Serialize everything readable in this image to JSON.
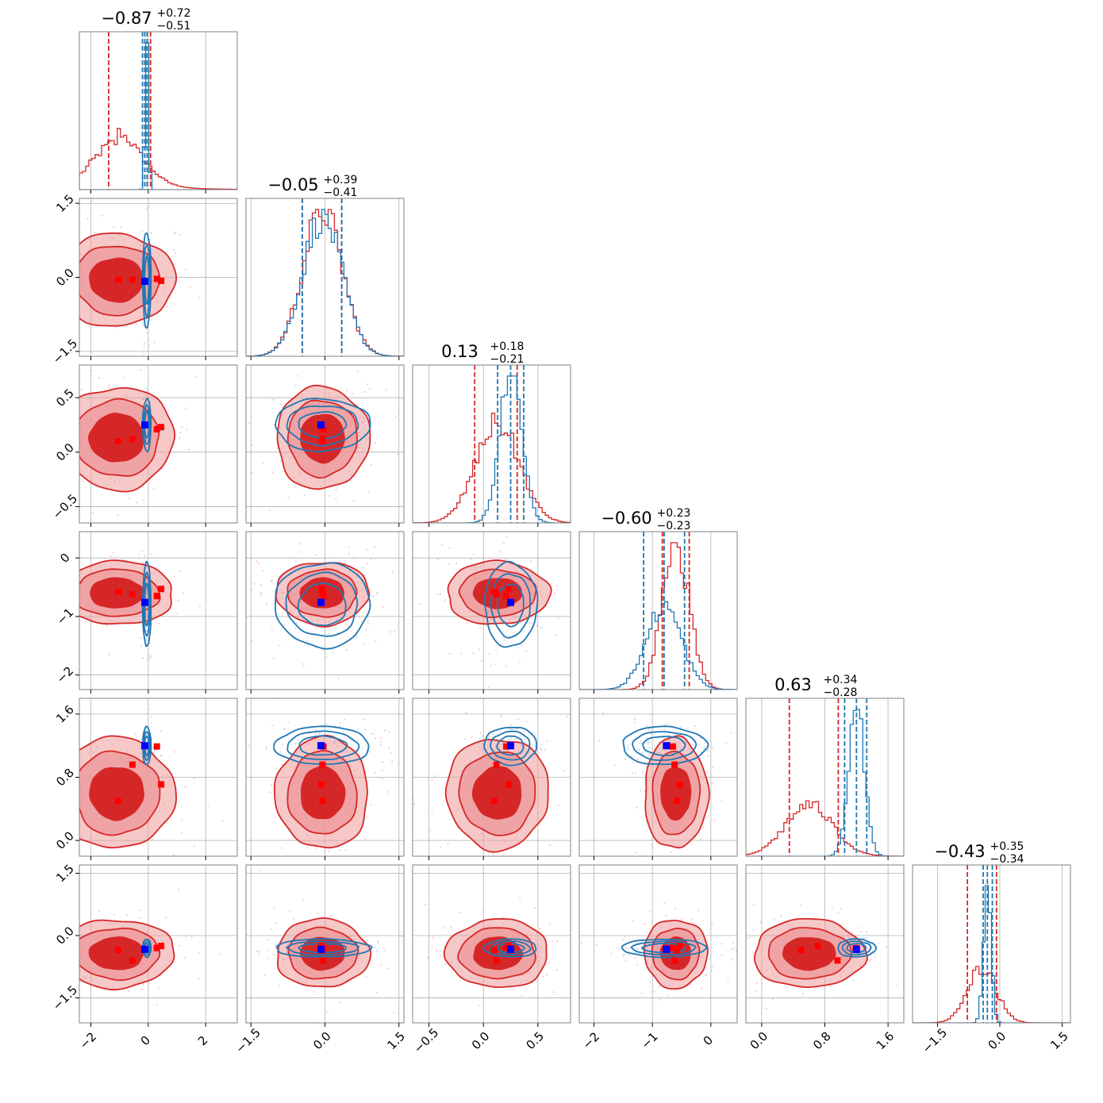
{
  "colors": {
    "primary": "#d62728",
    "primary_fill_inner": "#d62728",
    "primary_fill_outer": "#ef9a9b",
    "primary_marker": "#ff0000",
    "secondary": "#1f77b4",
    "secondary_marker": "#0000ff",
    "grid": "#b0b0b0",
    "frame": "#808080"
  },
  "chart_data": {
    "type": "corner",
    "n_params": 6,
    "grid": true,
    "params": [
      {
        "range": [
          -2.4,
          3.1
        ],
        "ticks": [
          -2,
          0,
          2
        ],
        "tick_labels": [
          "−2",
          "0",
          "2"
        ],
        "title": {
          "median": "−0.87",
          "plus": "+0.72",
          "minus": "−0.51"
        },
        "mean": [
          -1.1,
          -0.05
        ],
        "sd": [
          0.85,
          0.06
        ],
        "hist_height": [
          0.32,
          1.0
        ],
        "quantiles": [
          [
            -1.38,
            0.08
          ],
          [
            -0.2,
            -0.12,
            -0.04
          ]
        ],
        "blue_marker": -0.12,
        "red_markers": [
          -1.05,
          -0.55,
          0.3,
          0.45
        ]
      },
      {
        "range": [
          -1.6,
          1.6
        ],
        "ticks": [
          -1.5,
          0.0,
          1.5
        ],
        "tick_labels": [
          "−1.5",
          "0.0",
          "1.5"
        ],
        "title": {
          "median": "−0.05",
          "plus": "+0.39",
          "minus": "−0.41"
        },
        "mean": [
          -0.05,
          -0.05
        ],
        "sd": [
          0.4,
          0.4
        ],
        "hist_height": [
          1.0,
          0.95
        ],
        "quantiles": [
          [
            -0.46,
            0.34
          ],
          [
            -0.46,
            0.34
          ]
        ],
        "blue_marker": -0.08,
        "red_markers": [
          -0.05,
          -0.05,
          -0.03,
          -0.07
        ]
      },
      {
        "range": [
          -0.65,
          0.8
        ],
        "ticks": [
          -0.5,
          0.0,
          0.5
        ],
        "tick_labels": [
          "−0.5",
          "0.0",
          "0.5"
        ],
        "title": {
          "median": "0.13",
          "plus": "+0.18",
          "minus": "−0.21"
        },
        "mean": [
          0.13,
          0.25
        ],
        "sd": [
          0.2,
          0.1
        ],
        "hist_height": [
          0.68,
          1.0
        ],
        "quantiles": [
          [
            -0.08,
            0.31
          ],
          [
            0.13,
            0.25,
            0.37
          ]
        ],
        "blue_marker": 0.25,
        "red_markers": [
          0.1,
          0.12,
          0.21,
          0.23
        ]
      },
      {
        "range": [
          -2.25,
          0.45
        ],
        "ticks": [
          -2,
          -1,
          0
        ],
        "tick_labels": [
          "−2",
          "−1",
          "0"
        ],
        "title": {
          "median": "−0.60",
          "plus": "+0.23",
          "minus": "−0.23"
        },
        "mean": [
          -0.6,
          -0.8
        ],
        "sd": [
          0.23,
          0.3
        ],
        "hist_height": [
          1.0,
          0.57
        ],
        "quantiles": [
          [
            -0.83,
            -0.37
          ],
          [
            -1.15,
            -0.8,
            -0.45
          ]
        ],
        "blue_marker": -0.76,
        "red_markers": [
          -0.58,
          -0.62,
          -0.65,
          -0.53
        ]
      },
      {
        "range": [
          -0.2,
          1.8
        ],
        "ticks": [
          0.0,
          0.8,
          1.6
        ],
        "tick_labels": [
          "0.0",
          "0.8",
          "1.6"
        ],
        "title": {
          "median": "0.63",
          "plus": "+0.34",
          "minus": "−0.28"
        },
        "mean": [
          0.6,
          1.2
        ],
        "sd": [
          0.3,
          0.1
        ],
        "hist_height": [
          0.35,
          1.0
        ],
        "quantiles": [
          [
            0.35,
            0.97
          ],
          [
            1.05,
            1.2,
            1.33
          ]
        ],
        "blue_marker": 1.2,
        "red_markers": [
          0.5,
          0.96,
          1.19,
          0.71
        ]
      },
      {
        "range": [
          -2.1,
          1.7
        ],
        "ticks": [
          -1.5,
          0.0,
          1.5
        ],
        "tick_labels": [
          "−1.5",
          "0.0",
          "1.5"
        ],
        "title": {
          "median": "−0.43",
          "plus": "+0.35",
          "minus": "−0.34"
        },
        "mean": [
          -0.43,
          -0.3
        ],
        "sd": [
          0.35,
          0.09
        ],
        "hist_height": [
          0.37,
          1.0
        ],
        "quantiles": [
          [
            -0.78,
            -0.08
          ],
          [
            -0.4,
            -0.3,
            -0.18
          ]
        ],
        "blue_marker": -0.33,
        "red_markers": [
          -0.35,
          -0.6,
          -0.3,
          -0.25
        ]
      }
    ]
  }
}
